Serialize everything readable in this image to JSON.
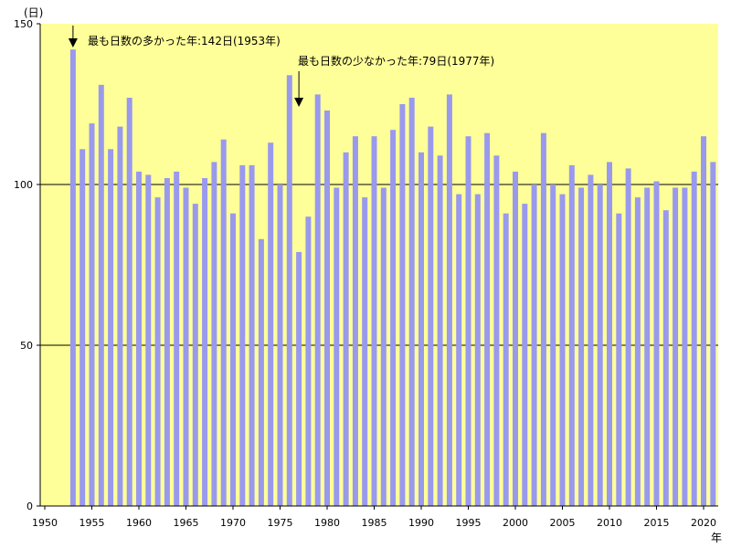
{
  "chart_data": {
    "type": "bar",
    "ylabel": "(日)",
    "xlabel": "年",
    "xlim": [
      1950,
      2021
    ],
    "ylim": [
      0,
      150
    ],
    "y_ticks": [
      0,
      50,
      100,
      150
    ],
    "y_tick_labels": [
      "0",
      "50",
      "100",
      "150"
    ],
    "x_ticks": [
      1950,
      1955,
      1960,
      1965,
      1970,
      1975,
      1980,
      1985,
      1990,
      1995,
      2000,
      2005,
      2010,
      2015,
      2020
    ],
    "x_tick_labels": [
      "1950",
      "1955",
      "1960",
      "1965",
      "1970",
      "1975",
      "1980",
      "1985",
      "1990",
      "1995",
      "2000",
      "2005",
      "2010",
      "2015",
      "2020"
    ],
    "gridlines_y": [
      50,
      100
    ],
    "grid": "horizontal",
    "categories": [
      1953,
      1954,
      1955,
      1956,
      1957,
      1958,
      1959,
      1960,
      1961,
      1962,
      1963,
      1964,
      1965,
      1966,
      1967,
      1968,
      1969,
      1970,
      1971,
      1972,
      1973,
      1974,
      1975,
      1976,
      1977,
      1978,
      1979,
      1980,
      1981,
      1982,
      1983,
      1984,
      1985,
      1986,
      1987,
      1988,
      1989,
      1990,
      1991,
      1992,
      1993,
      1994,
      1995,
      1996,
      1997,
      1998,
      1999,
      2000,
      2001,
      2002,
      2003,
      2004,
      2005,
      2006,
      2007,
      2008,
      2009,
      2010,
      2011,
      2012,
      2013,
      2014,
      2015,
      2016,
      2017,
      2018,
      2019,
      2020,
      2021
    ],
    "values": [
      142,
      111,
      119,
      131,
      111,
      118,
      127,
      104,
      103,
      96,
      102,
      104,
      99,
      94,
      102,
      107,
      114,
      91,
      106,
      106,
      83,
      113,
      100,
      134,
      79,
      90,
      128,
      123,
      99,
      110,
      115,
      96,
      115,
      99,
      117,
      125,
      127,
      110,
      118,
      109,
      128,
      97,
      115,
      97,
      116,
      109,
      91,
      104,
      94,
      100,
      116,
      100,
      97,
      106,
      99,
      103,
      100,
      107,
      91,
      105,
      96,
      99,
      101,
      92,
      99,
      99,
      104,
      115,
      107
    ],
    "annotations": [
      {
        "text": "最も日数の多かった年:142日(1953年)",
        "x": 1953,
        "y": 142
      },
      {
        "text": "最も日数の少なかった年:79日(1977年)",
        "x": 1977,
        "y": 79
      }
    ],
    "colors": {
      "plot_background": "#ffff99",
      "bar_fill": "#9999ee",
      "gridline": "#000000",
      "axis": "#000000"
    }
  }
}
